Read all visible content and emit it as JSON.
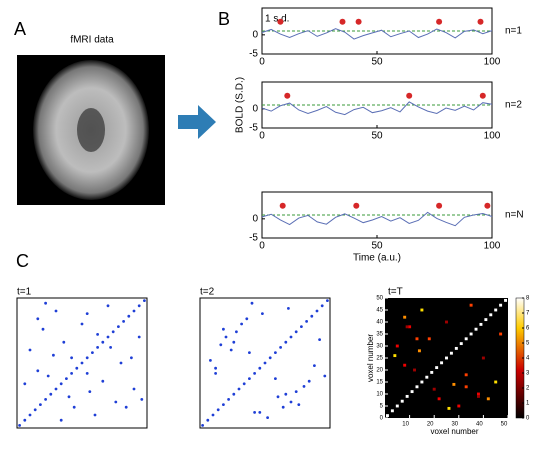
{
  "panel_a": "A",
  "panel_b": "B",
  "panel_c": "C",
  "fmri_label": "fMRI data",
  "chart_data": [
    {
      "type": "line",
      "title": "n=1",
      "threshold": 1,
      "threshold_label": "1 s.d.",
      "color": "#5b6fb5",
      "event_color": "#d62728",
      "x": [
        0,
        4,
        8,
        12,
        16,
        20,
        24,
        28,
        32,
        36,
        40,
        44,
        48,
        52,
        56,
        60,
        64,
        68,
        72,
        76,
        80,
        84,
        88,
        92,
        96,
        100
      ],
      "values": [
        0.6,
        1.4,
        0.2,
        -0.7,
        0.3,
        1.1,
        -0.4,
        0.5,
        1.6,
        0.7,
        -1.1,
        -0.2,
        0.5,
        1.2,
        -0.5,
        0.3,
        1.0,
        -0.7,
        0.2,
        1.5,
        0.6,
        -0.8,
        0.9,
        1.3,
        0.3,
        1.1
      ],
      "events": {
        "x": [
          8,
          35,
          42,
          77,
          95
        ],
        "y": [
          3.4,
          3.4,
          3.4,
          3.4,
          3.4
        ]
      },
      "xlim": [
        0,
        100
      ],
      "ylim": [
        -5,
        7
      ],
      "xticks": [
        0,
        50,
        100
      ],
      "yticks": [
        -5,
        0
      ]
    },
    {
      "type": "line",
      "title": "n=2",
      "ylabel": "BOLD (S.D.)",
      "threshold": 1,
      "color": "#5b6fb5",
      "event_color": "#d62728",
      "x": [
        0,
        4,
        8,
        12,
        16,
        20,
        24,
        28,
        32,
        36,
        40,
        44,
        48,
        52,
        56,
        60,
        64,
        68,
        72,
        76,
        80,
        84,
        88,
        92,
        96,
        100
      ],
      "values": [
        0.2,
        -0.6,
        0.8,
        1.5,
        -0.3,
        -1.2,
        -0.4,
        0.6,
        -0.9,
        -1.5,
        -0.2,
        0.4,
        -1.0,
        -0.5,
        0.3,
        -0.8,
        1.8,
        0.5,
        -0.6,
        -1.2,
        0.2,
        -0.4,
        0.7,
        -0.3,
        1.6,
        1.2
      ],
      "events": {
        "x": [
          11,
          64,
          96
        ],
        "y": [
          3.4,
          3.4,
          3.4
        ]
      },
      "xlim": [
        0,
        100
      ],
      "ylim": [
        -5,
        7
      ],
      "xticks": [
        0,
        50,
        100
      ],
      "yticks": [
        -5,
        0
      ]
    },
    {
      "type": "line",
      "title": "n=N",
      "xlabel": "Time (a.u.)",
      "threshold": 1,
      "color": "#5b6fb5",
      "event_color": "#d62728",
      "x": [
        0,
        4,
        8,
        12,
        16,
        20,
        24,
        28,
        32,
        36,
        40,
        44,
        48,
        52,
        56,
        60,
        64,
        68,
        72,
        76,
        80,
        84,
        88,
        92,
        96,
        100
      ],
      "values": [
        0.5,
        1.2,
        -0.3,
        -1.5,
        0.2,
        0.9,
        -0.8,
        -1.4,
        0.4,
        1.3,
        0.2,
        -1.0,
        -0.3,
        0.6,
        -0.6,
        0.3,
        -1.2,
        -0.4,
        1.7,
        0.1,
        -0.9,
        -1.8,
        0.4,
        1.0,
        1.4,
        0.6
      ],
      "events": {
        "x": [
          9,
          41,
          77,
          98
        ],
        "y": [
          3.4,
          3.4,
          3.4,
          3.4
        ]
      },
      "xlim": [
        0,
        100
      ],
      "ylim": [
        -5,
        7
      ],
      "xticks": [
        0,
        50,
        100
      ],
      "yticks": [
        -5,
        0
      ]
    },
    {
      "type": "scatter",
      "title": "t=1",
      "color": "#1f3fd6",
      "xlim": [
        0,
        50
      ],
      "ylim": [
        0,
        50
      ],
      "x": [
        1,
        3,
        5,
        7,
        9,
        11,
        13,
        15,
        17,
        19,
        21,
        23,
        25,
        27,
        29,
        31,
        33,
        35,
        37,
        39,
        41,
        43,
        45,
        47,
        49,
        5,
        30,
        8,
        42,
        12,
        20,
        15,
        45,
        18,
        33,
        22,
        8,
        25,
        40,
        28,
        14,
        35,
        47,
        38,
        10,
        3,
        17,
        44,
        27,
        31,
        36,
        11,
        48,
        21,
        27
      ],
      "y": [
        1,
        3,
        5,
        7,
        9,
        11,
        13,
        15,
        17,
        19,
        21,
        23,
        25,
        27,
        29,
        31,
        33,
        35,
        37,
        39,
        41,
        43,
        45,
        47,
        49,
        30,
        5,
        42,
        8,
        20,
        12,
        45,
        15,
        33,
        18,
        8,
        22,
        40,
        25,
        14,
        28,
        47,
        35,
        10,
        38,
        17,
        3,
        27,
        44,
        36,
        31,
        48,
        11,
        27,
        21
      ]
    },
    {
      "type": "scatter",
      "title": "t=2",
      "color": "#1f3fd6",
      "xlim": [
        0,
        50
      ],
      "ylim": [
        0,
        50
      ],
      "x": [
        1,
        3,
        5,
        7,
        9,
        11,
        13,
        15,
        17,
        19,
        21,
        23,
        25,
        27,
        29,
        31,
        33,
        35,
        37,
        39,
        41,
        43,
        45,
        47,
        49,
        4,
        26,
        9,
        38,
        13,
        33,
        16,
        40,
        19,
        29,
        23,
        6,
        24,
        44,
        30,
        12,
        34,
        46,
        37,
        14,
        6,
        21,
        42,
        18,
        32,
        8,
        10,
        35,
        20,
        48
      ],
      "y": [
        1,
        3,
        5,
        7,
        9,
        11,
        13,
        15,
        17,
        19,
        21,
        23,
        25,
        27,
        29,
        31,
        33,
        35,
        37,
        39,
        41,
        43,
        45,
        47,
        49,
        26,
        4,
        38,
        9,
        33,
        13,
        40,
        16,
        29,
        19,
        6,
        23,
        44,
        24,
        12,
        30,
        46,
        34,
        14,
        37,
        21,
        6,
        18,
        42,
        8,
        32,
        35,
        10,
        48,
        20
      ]
    },
    {
      "type": "heatmap",
      "title": "t=T",
      "xlabel": "voxel number",
      "ylabel": "voxel number",
      "xlim": [
        0,
        50
      ],
      "ylim": [
        0,
        50
      ],
      "xticks": [
        10,
        20,
        30,
        40,
        50
      ],
      "yticks": [
        0,
        5,
        10,
        15,
        20,
        25,
        30,
        35,
        40,
        45,
        50
      ],
      "clim": [
        0,
        8
      ],
      "cticks": [
        0,
        1,
        2,
        3,
        4,
        5,
        6,
        7,
        8
      ],
      "x": [
        1,
        3,
        5,
        7,
        9,
        11,
        13,
        15,
        17,
        19,
        21,
        23,
        25,
        27,
        29,
        31,
        33,
        35,
        37,
        39,
        41,
        43,
        45,
        47,
        49,
        5,
        30,
        8,
        42,
        12,
        20,
        15,
        45,
        18,
        33,
        22,
        8,
        25,
        40,
        28,
        14,
        35,
        47,
        38,
        10,
        26,
        4,
        9,
        38,
        13,
        33
      ],
      "y": [
        1,
        3,
        5,
        7,
        9,
        11,
        13,
        15,
        17,
        19,
        21,
        23,
        25,
        27,
        29,
        31,
        33,
        35,
        37,
        39,
        41,
        43,
        45,
        47,
        49,
        30,
        5,
        42,
        8,
        20,
        12,
        45,
        15,
        33,
        18,
        8,
        22,
        40,
        25,
        14,
        28,
        47,
        35,
        10,
        38,
        4,
        26,
        38,
        9,
        33,
        13
      ],
      "values": [
        8,
        8,
        8,
        8,
        8,
        8,
        8,
        8,
        8,
        8,
        8,
        8,
        8,
        8,
        8,
        8,
        8,
        8,
        8,
        8,
        8,
        8,
        8,
        8,
        8,
        3,
        3,
        5,
        5,
        2,
        2,
        6,
        6,
        4,
        4,
        3,
        3,
        2,
        2,
        5,
        5,
        4,
        4,
        3,
        3,
        6,
        6,
        2,
        2,
        4,
        4
      ]
    }
  ]
}
